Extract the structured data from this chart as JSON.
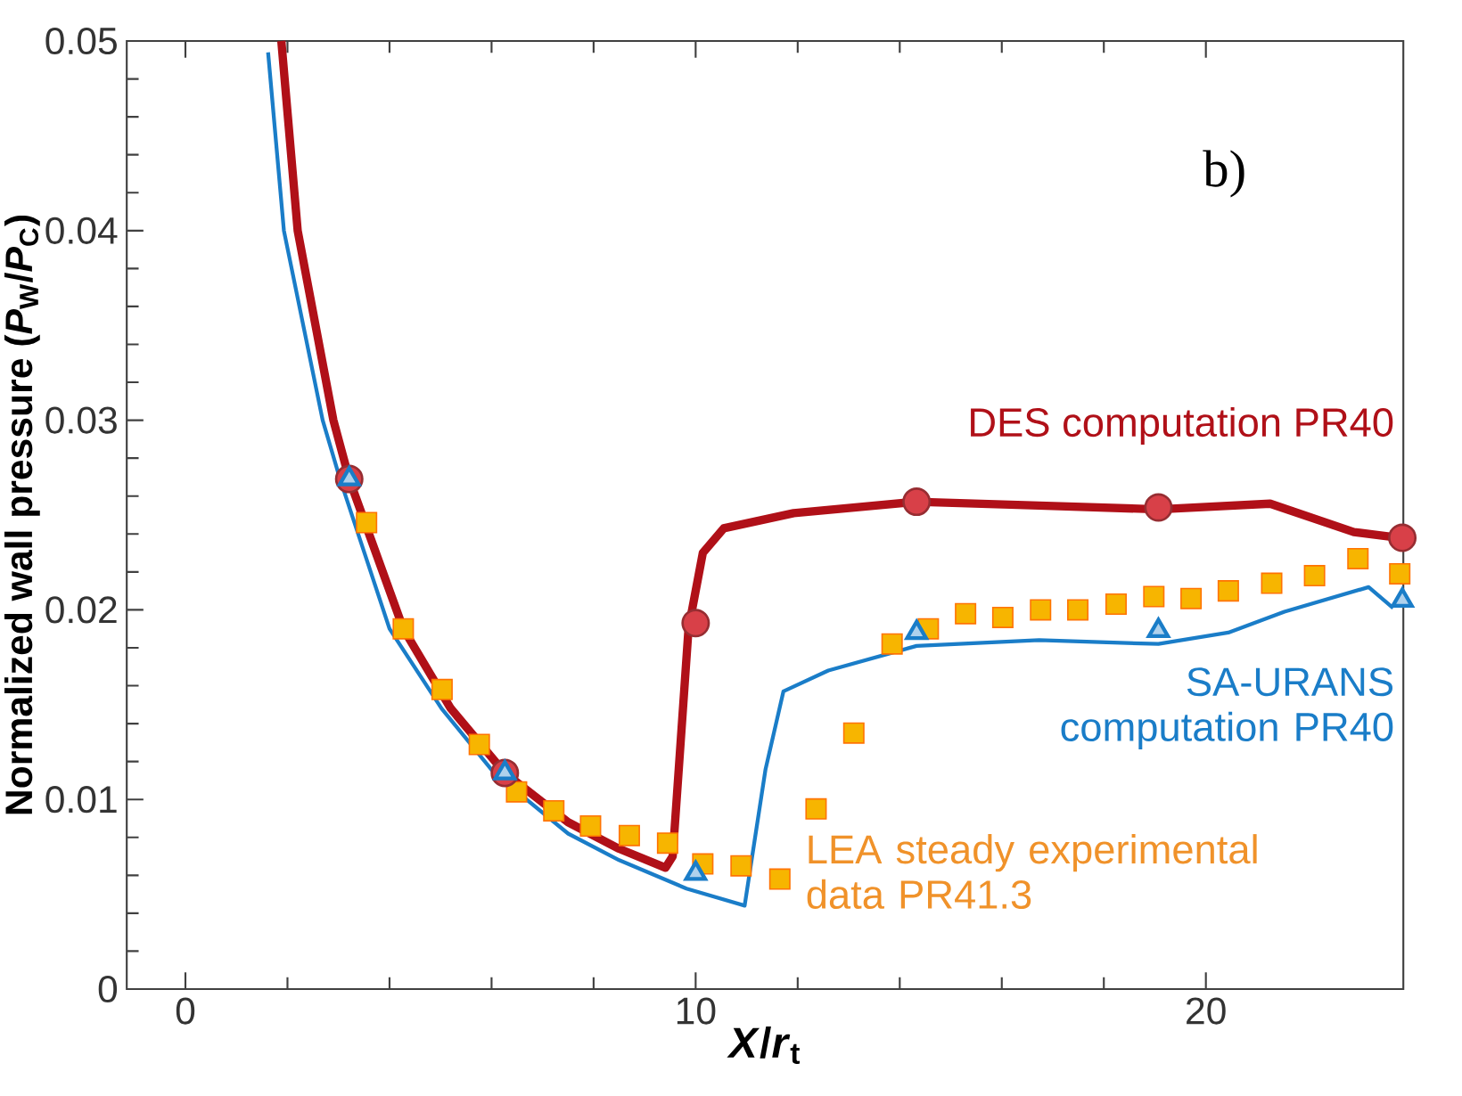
{
  "chart_data": {
    "type": "line",
    "xlabel": "*X*/*r*$_{t}$",
    "ylabel": "Normalized wall pressure (*P*$_{W}$/*P*$_{C}$)",
    "annotations": [
      "b)"
    ],
    "xlim": [
      -1.15,
      23.87
    ],
    "ylim": [
      0,
      0.05
    ],
    "xticks": [
      0,
      10,
      20
    ],
    "yticks": [
      0,
      0.01,
      0.02,
      0.03,
      0.04,
      0.05
    ],
    "grid": false,
    "legend": false,
    "series": [
      {
        "name": "DES computation PR40",
        "color": "#b01018",
        "marker": "none",
        "line_style": "solid",
        "x": [
          1.88,
          2.2,
          2.9,
          3.21,
          4.27,
          5.2,
          6.26,
          7.5,
          8.5,
          9.41,
          9.55,
          9.86,
          10.14,
          10.55,
          11.92,
          14.33,
          16.73,
          19.07,
          21.26,
          22.9,
          23.8
        ],
        "values": [
          0.05,
          0.04,
          0.03,
          0.0269,
          0.019,
          0.0148,
          0.0114,
          0.0088,
          0.0074,
          0.0064,
          0.007,
          0.019,
          0.023,
          0.0243,
          0.0251,
          0.0257,
          0.0255,
          0.0253,
          0.0256,
          0.0241,
          0.0238
        ]
      },
      {
        "name": "SA-URANS computation PR40",
        "color": "#1a7dc8",
        "marker": "none",
        "line_style": "solid",
        "x": [
          1.62,
          1.93,
          2.69,
          3.03,
          4.0,
          5.02,
          6.05,
          7.5,
          8.5,
          9.82,
          10.96,
          11.37,
          11.72,
          12.6,
          14.33,
          16.73,
          19.07,
          20.44,
          21.54,
          23.19,
          23.67
        ],
        "values": [
          0.0494,
          0.04,
          0.03,
          0.0269,
          0.019,
          0.0148,
          0.0114,
          0.0082,
          0.0068,
          0.0053,
          0.0044,
          0.0116,
          0.0157,
          0.0168,
          0.0181,
          0.0184,
          0.0182,
          0.0188,
          0.0199,
          0.0212,
          0.0201
        ]
      },
      {
        "type": "scatter",
        "name": "LEA steady experimental data PR41.3",
        "color": "#f7b500",
        "marker": "square",
        "x": [
          3.55,
          4.27,
          5.03,
          5.76,
          6.49,
          7.22,
          7.94,
          8.7,
          9.45,
          10.14,
          10.89,
          11.65,
          12.36,
          13.1,
          13.85,
          14.56,
          15.29,
          16.02,
          16.76,
          17.49,
          18.24,
          18.98,
          19.71,
          20.44,
          21.29,
          22.13,
          22.98,
          23.8
        ],
        "values": [
          0.0246,
          0.019,
          0.0158,
          0.0129,
          0.0104,
          0.0094,
          0.0086,
          0.0081,
          0.0077,
          0.0066,
          0.0065,
          0.0058,
          0.0095,
          0.0135,
          0.0182,
          0.019,
          0.0198,
          0.0196,
          0.02,
          0.02,
          0.0203,
          0.0207,
          0.0206,
          0.021,
          0.0214,
          0.0218,
          0.0227,
          0.0219
        ]
      },
      {
        "type": "scatter",
        "color": "#d84048",
        "marker": "circle",
        "x": [
          3.21,
          6.26,
          10.0,
          14.33,
          19.07,
          23.85
        ],
        "values": [
          0.0269,
          0.0114,
          0.0193,
          0.0257,
          0.0254,
          0.0238
        ]
      },
      {
        "type": "scatter",
        "color": "#1a7dc8",
        "marker": "triangle",
        "x": [
          3.21,
          6.26,
          10.0,
          14.33,
          19.07,
          23.85
        ],
        "values": [
          0.0269,
          0.0114,
          0.0061,
          0.0188,
          0.0189,
          0.0205
        ]
      }
    ]
  }
}
